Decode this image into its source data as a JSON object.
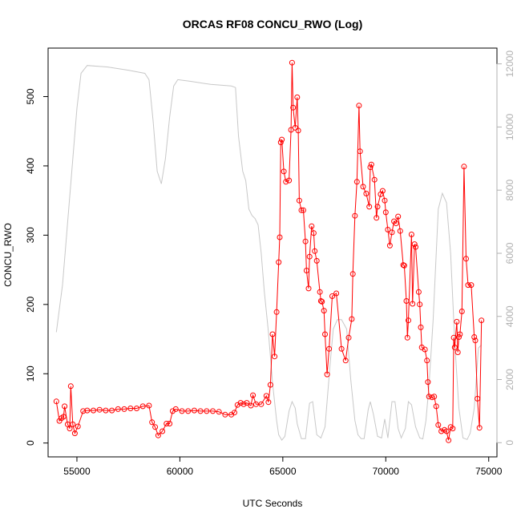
{
  "chart_data": {
    "type": "line",
    "title": "ORCAS RF08 CONCU_RWO (Log)",
    "xlabel": "UTC Seconds",
    "ylabel": "CONCU_RWO",
    "xlim": [
      53600,
      75400
    ],
    "ylim": [
      -20,
      570
    ],
    "y2lim": [
      -450,
      12500
    ],
    "x_ticks": [
      55000,
      60000,
      65000,
      70000,
      75000
    ],
    "y_ticks": [
      0,
      100,
      200,
      300,
      400,
      500
    ],
    "y2_ticks": [
      0,
      2000,
      4000,
      6000,
      8000,
      10000,
      12000
    ],
    "grid": false,
    "colors": {
      "primary": "#ff0000",
      "secondary": "#c8c8c8",
      "right_axis": "#b0b0b0"
    },
    "series": [
      {
        "role": "primary",
        "marker": "open-circle",
        "points": [
          [
            54000,
            60
          ],
          [
            54150,
            32
          ],
          [
            54250,
            36
          ],
          [
            54350,
            38
          ],
          [
            54400,
            53
          ],
          [
            54550,
            27
          ],
          [
            54650,
            21
          ],
          [
            54700,
            82
          ],
          [
            54800,
            27
          ],
          [
            54900,
            14
          ],
          [
            55050,
            24
          ],
          [
            55300,
            46
          ],
          [
            55500,
            47
          ],
          [
            55800,
            47
          ],
          [
            56100,
            48
          ],
          [
            56400,
            47
          ],
          [
            56700,
            47
          ],
          [
            57000,
            49
          ],
          [
            57300,
            49
          ],
          [
            57600,
            50
          ],
          [
            57900,
            50
          ],
          [
            58200,
            53
          ],
          [
            58500,
            54
          ],
          [
            58650,
            30
          ],
          [
            58800,
            23
          ],
          [
            58950,
            11
          ],
          [
            59150,
            17
          ],
          [
            59350,
            28
          ],
          [
            59500,
            28
          ],
          [
            59650,
            46
          ],
          [
            59800,
            49
          ],
          [
            60100,
            46
          ],
          [
            60400,
            46
          ],
          [
            60700,
            47
          ],
          [
            61000,
            46
          ],
          [
            61300,
            46
          ],
          [
            61600,
            46
          ],
          [
            61900,
            45
          ],
          [
            62200,
            41
          ],
          [
            62500,
            41
          ],
          [
            62650,
            44
          ],
          [
            62800,
            55
          ],
          [
            62950,
            58
          ],
          [
            63100,
            56
          ],
          [
            63250,
            58
          ],
          [
            63450,
            54
          ],
          [
            63550,
            69
          ],
          [
            63700,
            56
          ],
          [
            63950,
            56
          ],
          [
            64200,
            68
          ],
          [
            64300,
            59
          ],
          [
            64400,
            84
          ],
          [
            64500,
            157
          ],
          [
            64600,
            125
          ],
          [
            64700,
            189
          ],
          [
            64800,
            261
          ],
          [
            64850,
            297
          ],
          [
            64900,
            434
          ],
          [
            64950,
            438
          ],
          [
            65050,
            392
          ],
          [
            65150,
            377
          ],
          [
            65300,
            379
          ],
          [
            65400,
            452
          ],
          [
            65450,
            549
          ],
          [
            65500,
            484
          ],
          [
            65600,
            455
          ],
          [
            65700,
            499
          ],
          [
            65750,
            451
          ],
          [
            65800,
            350
          ],
          [
            65900,
            336
          ],
          [
            66000,
            336
          ],
          [
            66100,
            291
          ],
          [
            66150,
            249
          ],
          [
            66250,
            223
          ],
          [
            66300,
            269
          ],
          [
            66400,
            313
          ],
          [
            66500,
            303
          ],
          [
            66550,
            277
          ],
          [
            66650,
            263
          ],
          [
            66800,
            218
          ],
          [
            66850,
            205
          ],
          [
            66900,
            204
          ],
          [
            67000,
            191
          ],
          [
            67050,
            157
          ],
          [
            67150,
            99
          ],
          [
            67250,
            136
          ],
          [
            67400,
            212
          ],
          [
            67600,
            216
          ],
          [
            67850,
            136
          ],
          [
            68050,
            119
          ],
          [
            68200,
            152
          ],
          [
            68350,
            179
          ],
          [
            68400,
            244
          ],
          [
            68500,
            328
          ],
          [
            68600,
            377
          ],
          [
            68700,
            487
          ],
          [
            68750,
            421
          ],
          [
            68900,
            370
          ],
          [
            69050,
            360
          ],
          [
            69200,
            341
          ],
          [
            69250,
            398
          ],
          [
            69300,
            402
          ],
          [
            69450,
            380
          ],
          [
            69550,
            325
          ],
          [
            69600,
            341
          ],
          [
            69750,
            359
          ],
          [
            69850,
            364
          ],
          [
            69950,
            350
          ],
          [
            70000,
            333
          ],
          [
            70100,
            308
          ],
          [
            70200,
            285
          ],
          [
            70300,
            304
          ],
          [
            70400,
            320
          ],
          [
            70500,
            317
          ],
          [
            70600,
            327
          ],
          [
            70700,
            306
          ],
          [
            70850,
            257
          ],
          [
            70900,
            256
          ],
          [
            71000,
            205
          ],
          [
            71050,
            152
          ],
          [
            71100,
            177
          ],
          [
            71250,
            301
          ],
          [
            71300,
            201
          ],
          [
            71400,
            287
          ],
          [
            71450,
            283
          ],
          [
            71600,
            218
          ],
          [
            71650,
            200
          ],
          [
            71700,
            167
          ],
          [
            71750,
            138
          ],
          [
            71900,
            135
          ],
          [
            72000,
            119
          ],
          [
            72050,
            88
          ],
          [
            72100,
            67
          ],
          [
            72250,
            66
          ],
          [
            72350,
            67
          ],
          [
            72450,
            53
          ],
          [
            72550,
            26
          ],
          [
            72700,
            17
          ],
          [
            72850,
            19
          ],
          [
            72950,
            17
          ],
          [
            73050,
            4
          ],
          [
            73150,
            23
          ],
          [
            73250,
            21
          ],
          [
            73300,
            152
          ],
          [
            73350,
            138
          ],
          [
            73450,
            175
          ],
          [
            73500,
            131
          ],
          [
            73550,
            153
          ],
          [
            73600,
            157
          ],
          [
            73700,
            190
          ],
          [
            73800,
            399
          ],
          [
            73900,
            266
          ],
          [
            74000,
            228
          ],
          [
            74150,
            228
          ],
          [
            74300,
            153
          ],
          [
            74350,
            148
          ],
          [
            74450,
            64
          ],
          [
            74550,
            22
          ],
          [
            74650,
            177
          ]
        ]
      },
      {
        "role": "secondary",
        "axis": "right",
        "marker": "none",
        "points": [
          [
            54000,
            3500
          ],
          [
            54300,
            5000
          ],
          [
            54700,
            8200
          ],
          [
            55000,
            10600
          ],
          [
            55200,
            11700
          ],
          [
            55500,
            11950
          ],
          [
            56500,
            11900
          ],
          [
            57500,
            11800
          ],
          [
            58300,
            11700
          ],
          [
            58500,
            11500
          ],
          [
            58700,
            10200
          ],
          [
            58900,
            8600
          ],
          [
            59100,
            8200
          ],
          [
            59300,
            9000
          ],
          [
            59500,
            10300
          ],
          [
            59700,
            11300
          ],
          [
            59900,
            11500
          ],
          [
            60500,
            11450
          ],
          [
            61500,
            11350
          ],
          [
            62500,
            11300
          ],
          [
            62700,
            11250
          ],
          [
            62850,
            9700
          ],
          [
            63050,
            8600
          ],
          [
            63200,
            8300
          ],
          [
            63350,
            7400
          ],
          [
            63500,
            7200
          ],
          [
            63650,
            7100
          ],
          [
            63800,
            6900
          ],
          [
            63950,
            6000
          ],
          [
            64100,
            4800
          ],
          [
            64300,
            3500
          ],
          [
            64500,
            1900
          ],
          [
            64700,
            700
          ],
          [
            64800,
            250
          ],
          [
            64950,
            80
          ],
          [
            65100,
            200
          ],
          [
            65300,
            1000
          ],
          [
            65450,
            1300
          ],
          [
            65600,
            1100
          ],
          [
            65700,
            600
          ],
          [
            65900,
            130
          ],
          [
            66100,
            130
          ],
          [
            66300,
            1250
          ],
          [
            66450,
            1300
          ],
          [
            66650,
            250
          ],
          [
            66850,
            150
          ],
          [
            67050,
            500
          ],
          [
            67300,
            2500
          ],
          [
            67450,
            3600
          ],
          [
            67650,
            3900
          ],
          [
            67850,
            3900
          ],
          [
            68100,
            3600
          ],
          [
            68300,
            2000
          ],
          [
            68500,
            700
          ],
          [
            68650,
            250
          ],
          [
            68800,
            130
          ],
          [
            68950,
            130
          ],
          [
            69150,
            1050
          ],
          [
            69250,
            1300
          ],
          [
            69400,
            900
          ],
          [
            69600,
            200
          ],
          [
            69800,
            150
          ],
          [
            69950,
            750
          ],
          [
            70100,
            150
          ],
          [
            70300,
            1300
          ],
          [
            70450,
            1300
          ],
          [
            70600,
            450
          ],
          [
            70750,
            150
          ],
          [
            70950,
            450
          ],
          [
            71100,
            1300
          ],
          [
            71250,
            1200
          ],
          [
            71450,
            500
          ],
          [
            71650,
            150
          ],
          [
            71800,
            120
          ],
          [
            71950,
            700
          ],
          [
            72100,
            1800
          ],
          [
            72300,
            3900
          ],
          [
            72550,
            7400
          ],
          [
            72750,
            7900
          ],
          [
            72950,
            7600
          ],
          [
            73150,
            6000
          ],
          [
            73350,
            3200
          ],
          [
            73550,
            1100
          ],
          [
            73750,
            150
          ],
          [
            73950,
            100
          ],
          [
            74100,
            300
          ],
          [
            74300,
            1100
          ],
          [
            74500,
            3000
          ],
          [
            74650,
            3100
          ]
        ]
      }
    ]
  }
}
